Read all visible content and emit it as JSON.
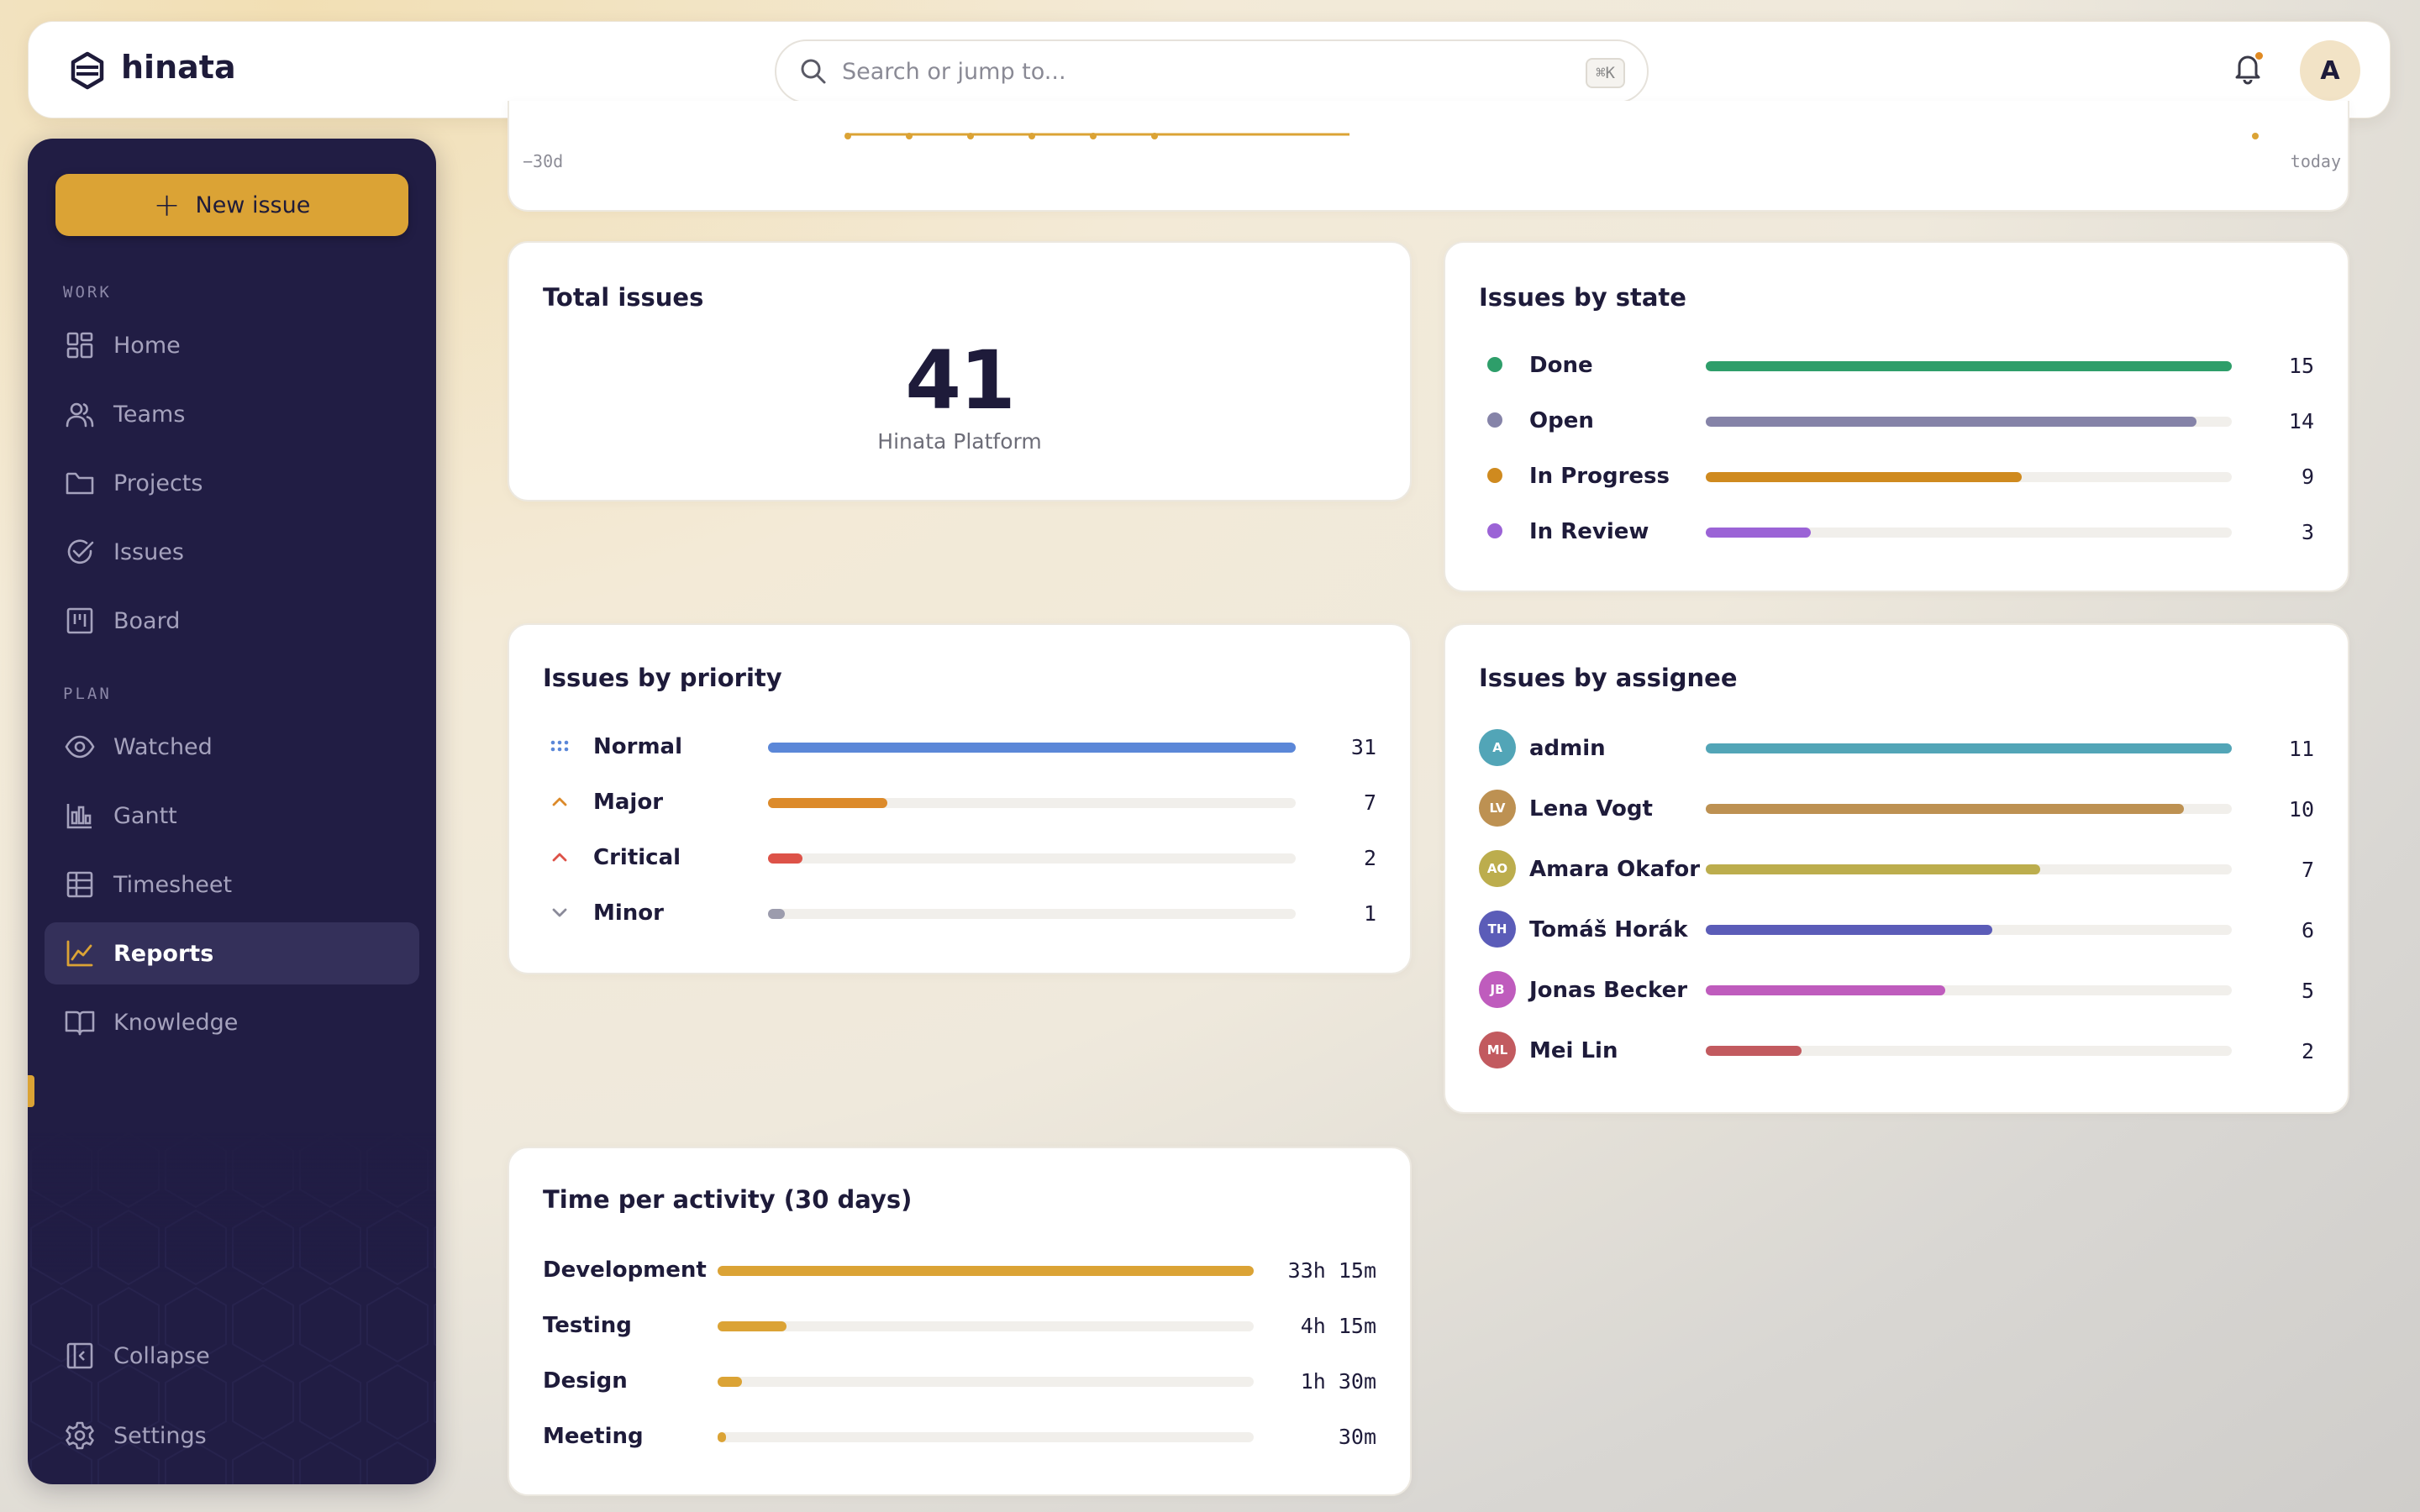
{
  "app": {
    "brand": "hinata"
  },
  "search": {
    "placeholder": "Search or jump to...",
    "shortcut": "⌘K"
  },
  "user": {
    "initial": "A"
  },
  "sidebar": {
    "new_issue_label": "New issue",
    "sections": [
      {
        "label": "WORK",
        "items": [
          {
            "label": "Home",
            "icon": "home-icon"
          },
          {
            "label": "Teams",
            "icon": "teams-icon"
          },
          {
            "label": "Projects",
            "icon": "folder-icon"
          },
          {
            "label": "Issues",
            "icon": "check-circle-icon"
          },
          {
            "label": "Board",
            "icon": "board-icon"
          }
        ]
      },
      {
        "label": "PLAN",
        "items": [
          {
            "label": "Watched",
            "icon": "eye-icon"
          },
          {
            "label": "Gantt",
            "icon": "gantt-icon"
          },
          {
            "label": "Timesheet",
            "icon": "table-icon"
          },
          {
            "label": "Reports",
            "icon": "chart-line-icon",
            "active": true
          },
          {
            "label": "Knowledge",
            "icon": "book-icon"
          }
        ]
      }
    ],
    "footer": [
      {
        "label": "Collapse",
        "icon": "collapse-icon"
      },
      {
        "label": "Settings",
        "icon": "gear-icon"
      }
    ]
  },
  "trend_card": {
    "x_start": "−30d",
    "x_end": "today"
  },
  "total_issues": {
    "title": "Total issues",
    "value": "41",
    "subtitle": "Hinata Platform"
  },
  "issues_by_state": {
    "title": "Issues by state",
    "max": 15,
    "rows": [
      {
        "label": "Done",
        "value": 15,
        "color": "#2e9e6a"
      },
      {
        "label": "Open",
        "value": 14,
        "color": "#8583a8"
      },
      {
        "label": "In Progress",
        "value": 9,
        "color": "#cf8a1f"
      },
      {
        "label": "In Review",
        "value": 3,
        "color": "#9b63d6"
      }
    ]
  },
  "issues_by_priority": {
    "title": "Issues by priority",
    "max": 31,
    "rows": [
      {
        "label": "Normal",
        "value": 31,
        "color": "#5b87d8",
        "icon": "normal-priority-icon"
      },
      {
        "label": "Major",
        "value": 7,
        "color": "#dc8a2a",
        "icon": "chevron-up-icon"
      },
      {
        "label": "Critical",
        "value": 2,
        "color": "#dd5248",
        "icon": "chevron-up-icon"
      },
      {
        "label": "Minor",
        "value": 1,
        "color": "#9c9cad",
        "icon": "chevron-down-icon"
      }
    ]
  },
  "issues_by_assignee": {
    "title": "Issues by assignee",
    "max": 11,
    "rows": [
      {
        "initials": "A",
        "label": "admin",
        "value": 11,
        "color": "#52a5b7"
      },
      {
        "initials": "LV",
        "label": "Lena Vogt",
        "value": 10,
        "color": "#bd9152"
      },
      {
        "initials": "AO",
        "label": "Amara Okafor",
        "value": 7,
        "color": "#bcad4d"
      },
      {
        "initials": "TH",
        "label": "Tomáš Horák",
        "value": 6,
        "color": "#5b5cb8"
      },
      {
        "initials": "JB",
        "label": "Jonas Becker",
        "value": 5,
        "color": "#bf5cbd"
      },
      {
        "initials": "ML",
        "label": "Mei Lin",
        "value": 2,
        "color": "#c25a5f"
      }
    ]
  },
  "time_per_activity": {
    "title": "Time per activity (30 days)",
    "max_minutes": 1995,
    "rows": [
      {
        "label": "Development",
        "minutes": 1995,
        "display": "33h 15m"
      },
      {
        "label": "Testing",
        "minutes": 255,
        "display": "4h 15m"
      },
      {
        "label": "Design",
        "minutes": 90,
        "display": "1h 30m"
      },
      {
        "label": "Meeting",
        "minutes": 30,
        "display": "30m"
      }
    ],
    "color": "#dba335"
  }
}
